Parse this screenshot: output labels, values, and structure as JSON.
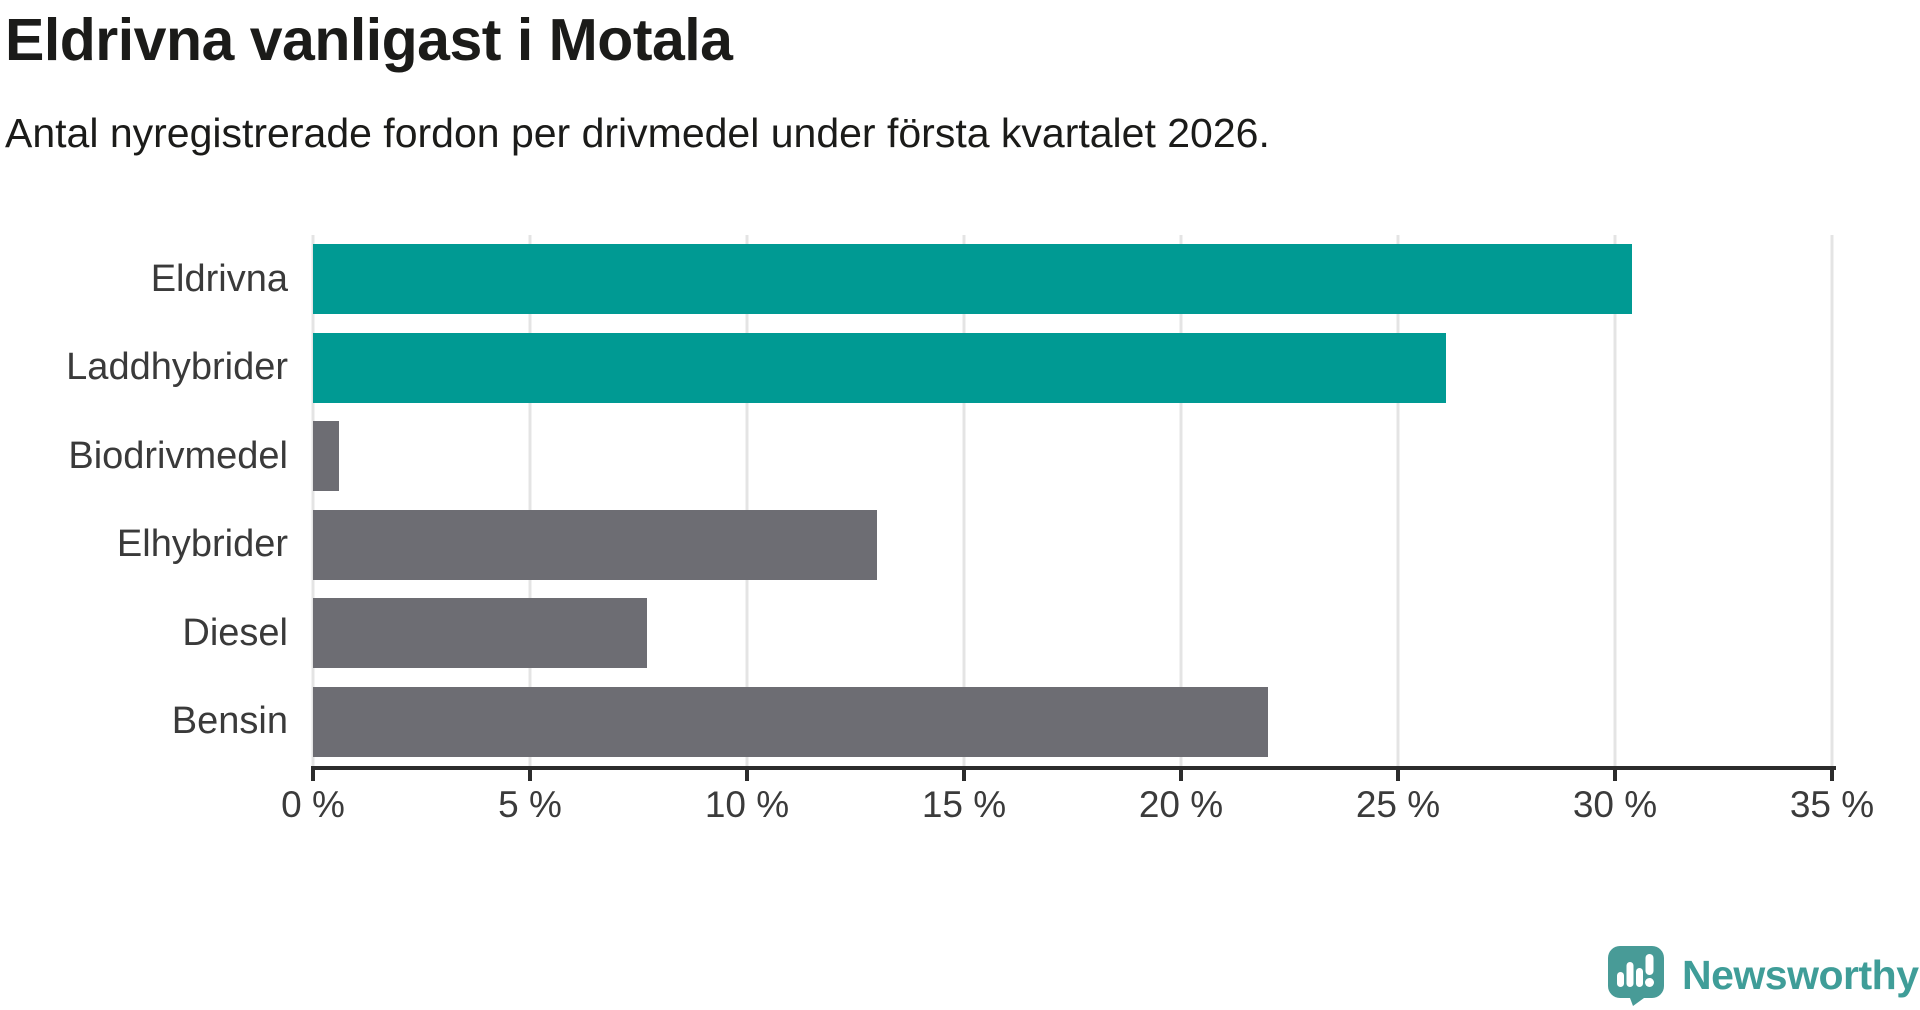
{
  "title": "Eldrivna vanligast i Motala",
  "subtitle": "Antal nyregistrerade fordon per drivmedel under första kvartalet 2026.",
  "chart_data": {
    "type": "bar",
    "orientation": "horizontal",
    "categories": [
      "Eldrivna",
      "Laddhybrider",
      "Biodrivmedel",
      "Elhybrider",
      "Diesel",
      "Bensin"
    ],
    "values": [
      30.4,
      26.1,
      0.6,
      13.0,
      7.7,
      22.0
    ],
    "unit": "%",
    "xlim": [
      0,
      35
    ],
    "x_ticks": [
      0,
      5,
      10,
      15,
      20,
      25,
      30,
      35
    ],
    "x_tick_labels": [
      "0 %",
      "5 %",
      "10 %",
      "15 %",
      "20 %",
      "25 %",
      "30 %",
      "35 %"
    ],
    "bar_colors": [
      "#009a93",
      "#009a93",
      "#6d6d73",
      "#6d6d73",
      "#6d6d73",
      "#6d6d73"
    ],
    "highlight_color": "#009a93",
    "default_color": "#6d6d73",
    "grid": true,
    "gridline_color": "#e4e4e4",
    "axis_color": "#2c2c2c",
    "legend": "none"
  },
  "branding": {
    "logo_text": "Newsworthy",
    "logo_color": "#3f9d98",
    "logo_icon": "newsworthy-speech-bubble-chart-icon",
    "logo_icon_color": "#489b97"
  }
}
